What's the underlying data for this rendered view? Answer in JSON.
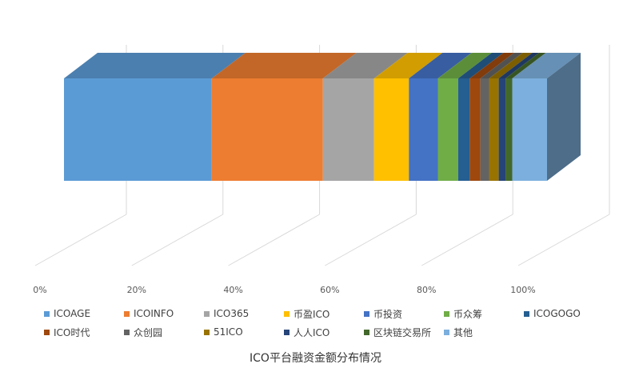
{
  "chart_data": {
    "type": "bar",
    "orientation": "horizontal-100%-stacked-3d",
    "title": "",
    "xlabel": "",
    "ylabel": "",
    "xlim": [
      0,
      100
    ],
    "x_tick_labels": [
      "0%",
      "20%",
      "40%",
      "60%",
      "80%",
      "100%"
    ],
    "grid": true,
    "legend_position": "bottom",
    "series": [
      {
        "name": "ICOAGE",
        "value": 30.6,
        "color": "#5B9BD5"
      },
      {
        "name": "ICOINFO",
        "value": 23.0,
        "color": "#ED7D31"
      },
      {
        "name": "ICO365",
        "value": 10.6,
        "color": "#A5A5A5"
      },
      {
        "name": "币盈ICO",
        "value": 7.2,
        "color": "#FFC000"
      },
      {
        "name": "币投资",
        "value": 6.0,
        "color": "#4472C4"
      },
      {
        "name": "币众筹",
        "value": 4.2,
        "color": "#70AD47"
      },
      {
        "name": "ICOGOGO",
        "value": 2.4,
        "color": "#255E91"
      },
      {
        "name": "ICO时代",
        "value": 2.2,
        "color": "#9E480E"
      },
      {
        "name": "众创园",
        "value": 1.8,
        "color": "#636363"
      },
      {
        "name": "51ICO",
        "value": 2.0,
        "color": "#997300"
      },
      {
        "name": "人人ICO",
        "value": 1.4,
        "color": "#264478"
      },
      {
        "name": "区块链交易所",
        "value": 1.4,
        "color": "#43682B"
      },
      {
        "name": "其他",
        "value": 7.2,
        "color": "#7CAFDD"
      }
    ]
  },
  "caption": "ICO平台融资金额分布情况"
}
